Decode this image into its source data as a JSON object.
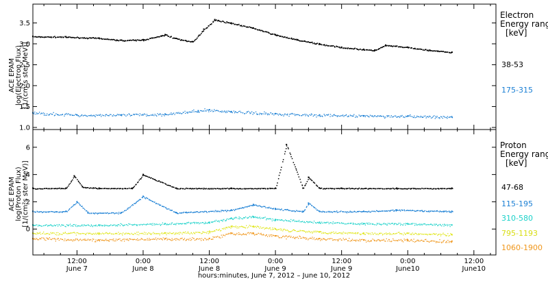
{
  "chart_data": {
    "type": "scatter",
    "xlabel": "hours:minutes,  June  7, 2012 – June 10, 2012",
    "x_ticks": [
      {
        "t": 12,
        "time": "12:00",
        "day": "June 7"
      },
      {
        "t": 24,
        "time": "0:00",
        "day": "June 8"
      },
      {
        "t": 36,
        "time": "12:00",
        "day": "June 8"
      },
      {
        "t": 48,
        "time": "0:00",
        "day": "June 9"
      },
      {
        "t": 60,
        "time": "12:00",
        "day": "June 9"
      },
      {
        "t": 72,
        "time": "0:00",
        "day": "June10"
      },
      {
        "t": 84,
        "time": "12:00",
        "day": "June10"
      }
    ],
    "x_unit": "hours from June 7, 2012 00:00",
    "xlim": [
      4,
      88
    ],
    "panels": [
      {
        "id": "electron",
        "ylabel_lines": [
          "ACE EPAM",
          "log(Electron Flux)",
          "[1/(cm²s ster MeV)]"
        ],
        "ylim": [
          0.95,
          3.95
        ],
        "yticks": [
          "1.0",
          "1.5",
          "2.0",
          "2.5",
          "3.0",
          "3.5"
        ],
        "legend_title_lines": [
          "Electron",
          "Energy ranges",
          "[keV]"
        ],
        "series": [
          {
            "name": "38-53",
            "color": "#000000",
            "x": [
              4,
              10,
              16,
              20,
              24,
              28,
              30,
              33,
              35,
              37,
              40,
              44,
              48,
              52,
              56,
              60,
              64,
              66,
              68,
              72,
              76,
              80
            ],
            "y": [
              3.18,
              3.17,
              3.14,
              3.09,
              3.1,
              3.22,
              3.13,
              3.05,
              3.35,
              3.58,
              3.5,
              3.38,
              3.22,
              3.1,
              3.0,
              2.92,
              2.87,
              2.85,
              2.97,
              2.92,
              2.85,
              2.8
            ]
          },
          {
            "name": "175-315",
            "color": "#1a7fd4",
            "x": [
              4,
              12,
              20,
              28,
              34,
              36,
              40,
              48,
              56,
              64,
              72,
              80
            ],
            "y": [
              1.35,
              1.3,
              1.3,
              1.32,
              1.4,
              1.42,
              1.38,
              1.33,
              1.3,
              1.28,
              1.27,
              1.25
            ]
          }
        ]
      },
      {
        "id": "proton",
        "ylabel_lines": [
          "ACE EPAM",
          "log(Proton Flux)",
          "[1/(cm²s ster MeV)]"
        ],
        "ylim": [
          -1.9,
          7.3
        ],
        "yticks": [
          "0",
          "2",
          "4",
          "6"
        ],
        "legend_title_lines": [
          "Proton",
          "Energy ranges",
          "[keV]"
        ],
        "series": [
          {
            "name": "47-68",
            "color": "#000000",
            "x": [
              4,
              10,
              11.5,
              13,
              16,
              22,
              24,
              30,
              40,
              48,
              50,
              53,
              54,
              56,
              60,
              70,
              80
            ],
            "y": [
              3.0,
              3.0,
              3.9,
              3.1,
              3.0,
              3.0,
              4.0,
              3.0,
              3.0,
              3.0,
              6.2,
              3.0,
              3.8,
              3.0,
              3.0,
              3.0,
              3.0
            ]
          },
          {
            "name": "115-195",
            "color": "#1a7fd4",
            "x": [
              4,
              10,
              12,
              14,
              20,
              24,
              30,
              40,
              44,
              48,
              53,
              54,
              56,
              64,
              70,
              80
            ],
            "y": [
              1.3,
              1.3,
              2.0,
              1.2,
              1.2,
              2.4,
              1.2,
              1.4,
              1.8,
              1.5,
              1.3,
              1.9,
              1.3,
              1.3,
              1.4,
              1.3
            ]
          },
          {
            "name": "310-580",
            "color": "#1ad1c9",
            "x": [
              4,
              16,
              28,
              36,
              40,
              44,
              48,
              56,
              64,
              72,
              80
            ],
            "y": [
              0.3,
              0.3,
              0.4,
              0.5,
              0.8,
              0.9,
              0.7,
              0.5,
              0.4,
              0.4,
              0.3
            ]
          },
          {
            "name": "795-1193",
            "color": "#e0e61a",
            "x": [
              4,
              16,
              28,
              36,
              40,
              44,
              48,
              56,
              64,
              72,
              80
            ],
            "y": [
              -0.3,
              -0.3,
              -0.3,
              -0.2,
              0.2,
              0.2,
              0.0,
              -0.2,
              -0.3,
              -0.3,
              -0.4
            ]
          },
          {
            "name": "1060-1900",
            "color": "#f0961a",
            "x": [
              4,
              16,
              28,
              36,
              40,
              44,
              48,
              56,
              64,
              72,
              80
            ],
            "y": [
              -0.7,
              -0.8,
              -0.7,
              -0.7,
              -0.3,
              -0.3,
              -0.5,
              -0.7,
              -0.8,
              -0.8,
              -0.9
            ]
          }
        ]
      }
    ]
  }
}
